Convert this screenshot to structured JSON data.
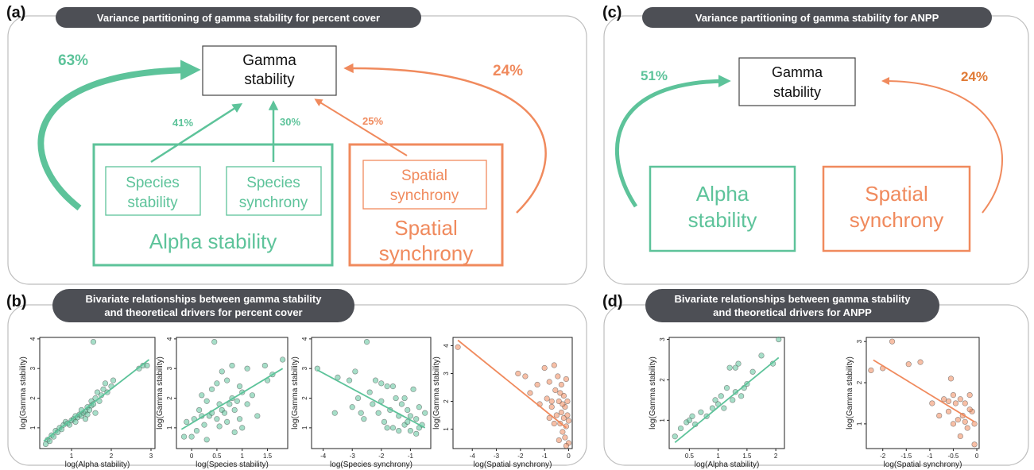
{
  "panels": {
    "a": {
      "tag": "(a)",
      "header": "Variance partitioning of gamma stability for percent cover",
      "gamma": [
        "Gamma",
        "stability"
      ],
      "alpha_label": "Alpha stability",
      "species_stability": [
        "Species",
        "stability"
      ],
      "species_synchrony": [
        "Species",
        "synchrony"
      ],
      "spatial_inner": [
        "Spatial",
        "synchrony"
      ],
      "spatial_outer": [
        "Spatial",
        "synchrony"
      ],
      "pct_alpha": "63%",
      "pct_spatial": "24%",
      "pct_species_stability": "41%",
      "pct_species_synchrony": "30%",
      "pct_spatial_inner": "25%"
    },
    "b": {
      "tag": "(b)",
      "header": [
        "Bivariate relationships between gamma stability",
        "and theoretical drivers for percent cover"
      ]
    },
    "c": {
      "tag": "(c)",
      "header": "Variance partitioning of gamma stability for ANPP",
      "gamma": [
        "Gamma",
        "stability"
      ],
      "alpha": [
        "Alpha",
        "stability"
      ],
      "spatial": [
        "Spatial",
        "synchrony"
      ],
      "pct_alpha": "51%",
      "pct_spatial": "24%"
    },
    "d": {
      "tag": "(d)",
      "header": [
        "Bivariate relationships between gamma stability",
        "and theoretical drivers for ANPP"
      ]
    }
  },
  "colors": {
    "green": "#5dc39a",
    "orange": "#f08a5d",
    "header_bg": "#4d4f55",
    "panel_border": "#bdbdbd"
  },
  "chart_data": [
    {
      "type": "scatter",
      "panel": "b",
      "color": "green",
      "xlabel": "log(Alpha stability)",
      "ylabel": "log(Gamma stability)",
      "xlim": [
        0.2,
        3.1
      ],
      "ylim": [
        0.3,
        4.05
      ],
      "xticks": [
        1,
        2,
        3
      ],
      "yticks": [
        1,
        2,
        3,
        4
      ],
      "fit": [
        [
          0.3,
          0.55
        ],
        [
          2.95,
          3.3
        ]
      ],
      "points": [
        [
          0.35,
          0.45
        ],
        [
          0.4,
          0.6
        ],
        [
          0.45,
          0.55
        ],
        [
          0.5,
          0.75
        ],
        [
          0.55,
          0.7
        ],
        [
          0.6,
          0.9
        ],
        [
          0.65,
          0.85
        ],
        [
          0.7,
          1.0
        ],
        [
          0.75,
          0.95
        ],
        [
          0.8,
          1.1
        ],
        [
          0.85,
          1.2
        ],
        [
          0.9,
          1.15
        ],
        [
          0.95,
          1.1
        ],
        [
          1.0,
          1.25
        ],
        [
          1.05,
          1.3
        ],
        [
          1.1,
          1.2
        ],
        [
          1.1,
          1.4
        ],
        [
          1.15,
          1.35
        ],
        [
          1.2,
          1.45
        ],
        [
          1.25,
          1.4
        ],
        [
          1.3,
          1.5
        ],
        [
          1.35,
          1.55
        ],
        [
          1.4,
          1.45
        ],
        [
          1.4,
          1.7
        ],
        [
          1.45,
          1.6
        ],
        [
          1.5,
          1.75
        ],
        [
          1.5,
          1.9
        ],
        [
          1.55,
          1.8
        ],
        [
          1.6,
          2.0
        ],
        [
          1.65,
          2.2
        ],
        [
          1.7,
          1.9
        ],
        [
          1.75,
          2.1
        ],
        [
          1.8,
          2.3
        ],
        [
          1.85,
          2.5
        ],
        [
          1.9,
          2.2
        ],
        [
          2.0,
          2.4
        ],
        [
          2.05,
          2.6
        ],
        [
          1.55,
          3.9
        ],
        [
          2.7,
          3.0
        ],
        [
          2.8,
          3.1
        ],
        [
          2.9,
          3.1
        ],
        [
          1.25,
          1.6
        ],
        [
          1.35,
          1.3
        ],
        [
          1.6,
          1.5
        ]
      ]
    },
    {
      "type": "scatter",
      "panel": "b",
      "color": "green",
      "xlabel": "log(Species stability)",
      "ylabel": "log(Gamma stability)",
      "xlim": [
        -0.3,
        1.9
      ],
      "ylim": [
        0.3,
        4.05
      ],
      "xticks": [
        0.0,
        0.5,
        1.0,
        1.5
      ],
      "yticks": [
        1,
        2,
        3,
        4
      ],
      "fit": [
        [
          -0.2,
          0.95
        ],
        [
          1.8,
          3.0
        ]
      ],
      "points": [
        [
          -0.15,
          0.7
        ],
        [
          -0.1,
          1.2
        ],
        [
          0.0,
          0.7
        ],
        [
          0.05,
          1.3
        ],
        [
          0.1,
          0.9
        ],
        [
          0.15,
          1.6
        ],
        [
          0.2,
          2.1
        ],
        [
          0.25,
          1.1
        ],
        [
          0.3,
          1.9
        ],
        [
          0.3,
          0.6
        ],
        [
          0.35,
          1.4
        ],
        [
          0.4,
          2.3
        ],
        [
          0.4,
          1.5
        ],
        [
          0.45,
          3.9
        ],
        [
          0.5,
          1.3
        ],
        [
          0.5,
          2.5
        ],
        [
          0.55,
          1.8
        ],
        [
          0.6,
          1.6
        ],
        [
          0.6,
          2.9
        ],
        [
          0.65,
          1.5
        ],
        [
          0.7,
          1.2
        ],
        [
          0.7,
          2.6
        ],
        [
          0.75,
          1.8
        ],
        [
          0.8,
          2.0
        ],
        [
          0.8,
          3.1
        ],
        [
          0.85,
          1.6
        ],
        [
          0.9,
          1.9
        ],
        [
          0.95,
          2.4
        ],
        [
          0.95,
          1.3
        ],
        [
          1.0,
          2.2
        ],
        [
          1.0,
          1.0
        ],
        [
          1.1,
          3.0
        ],
        [
          1.1,
          1.8
        ],
        [
          1.2,
          2.1
        ],
        [
          1.3,
          1.4
        ],
        [
          1.45,
          3.1
        ],
        [
          1.5,
          2.6
        ],
        [
          1.6,
          2.8
        ],
        [
          1.8,
          3.3
        ],
        [
          0.2,
          1.4
        ],
        [
          0.55,
          1.05
        ],
        [
          0.85,
          0.85
        ]
      ]
    },
    {
      "type": "scatter",
      "panel": "b",
      "color": "green",
      "xlabel": "log(Species synchrony)",
      "ylabel": "log(Gamma stability)",
      "xlim": [
        -4.4,
        -0.3
      ],
      "ylim": [
        0.3,
        4.05
      ],
      "xticks": [
        -4,
        -3,
        -2,
        -1
      ],
      "yticks": [
        1,
        2,
        3,
        4
      ],
      "fit": [
        [
          -4.2,
          2.95
        ],
        [
          -0.5,
          1.0
        ]
      ],
      "points": [
        [
          -4.2,
          3.0
        ],
        [
          -3.5,
          2.7
        ],
        [
          -3.1,
          2.6
        ],
        [
          -3.0,
          1.7
        ],
        [
          -2.9,
          2.9
        ],
        [
          -2.8,
          2.0
        ],
        [
          -2.6,
          1.3
        ],
        [
          -2.5,
          3.9
        ],
        [
          -2.4,
          2.2
        ],
        [
          -2.3,
          1.8
        ],
        [
          -2.2,
          2.6
        ],
        [
          -2.1,
          1.5
        ],
        [
          -2.0,
          1.9
        ],
        [
          -1.9,
          1.2
        ],
        [
          -1.8,
          2.4
        ],
        [
          -1.7,
          1.6
        ],
        [
          -1.6,
          1.0
        ],
        [
          -1.5,
          2.0
        ],
        [
          -1.4,
          1.4
        ],
        [
          -1.3,
          1.8
        ],
        [
          -1.2,
          1.1
        ],
        [
          -1.1,
          1.6
        ],
        [
          -1.0,
          0.9
        ],
        [
          -0.9,
          2.3
        ],
        [
          -0.8,
          1.3
        ],
        [
          -0.7,
          1.7
        ],
        [
          -0.6,
          1.1
        ],
        [
          -0.5,
          1.5
        ],
        [
          -1.6,
          2.4
        ],
        [
          -1.4,
          0.9
        ],
        [
          -1.2,
          2.0
        ],
        [
          -1.0,
          1.4
        ],
        [
          -0.8,
          0.8
        ],
        [
          -2.0,
          2.5
        ],
        [
          -1.8,
          1.0
        ],
        [
          -1.1,
          1.2
        ],
        [
          -0.7,
          1.0
        ],
        [
          -3.6,
          1.5
        ],
        [
          -2.7,
          1.5
        ]
      ]
    },
    {
      "type": "scatter",
      "panel": "b",
      "color": "orange",
      "xlabel": "log(Spatial synchrony)",
      "ylabel": "log(Gamma stability)",
      "xlim": [
        -4.8,
        0.15
      ],
      "ylim": [
        0.3,
        4.3
      ],
      "xticks": [
        -4,
        -3,
        -2,
        -1,
        0
      ],
      "yticks": [
        1,
        2,
        3,
        4
      ],
      "fit": [
        [
          -4.6,
          4.2
        ],
        [
          -0.1,
          1.05
        ]
      ],
      "points": [
        [
          -4.6,
          3.95
        ],
        [
          -2.1,
          3.0
        ],
        [
          -1.8,
          2.9
        ],
        [
          -1.6,
          2.3
        ],
        [
          -1.3,
          2.6
        ],
        [
          -1.2,
          1.9
        ],
        [
          -1.0,
          3.2
        ],
        [
          -0.9,
          2.1
        ],
        [
          -0.8,
          2.7
        ],
        [
          -0.7,
          1.8
        ],
        [
          -0.6,
          3.3
        ],
        [
          -0.55,
          2.4
        ],
        [
          -0.5,
          1.5
        ],
        [
          -0.45,
          2.9
        ],
        [
          -0.4,
          2.0
        ],
        [
          -0.35,
          1.2
        ],
        [
          -0.3,
          2.6
        ],
        [
          -0.3,
          1.6
        ],
        [
          -0.25,
          0.9
        ],
        [
          -0.2,
          2.2
        ],
        [
          -0.2,
          1.4
        ],
        [
          -0.15,
          1.8
        ],
        [
          -0.15,
          0.7
        ],
        [
          -0.1,
          2.8
        ],
        [
          -0.1,
          1.1
        ],
        [
          -0.05,
          1.5
        ],
        [
          -0.05,
          2.0
        ],
        [
          0.0,
          1.3
        ],
        [
          0.0,
          0.5
        ],
        [
          -0.6,
          1.2
        ],
        [
          -0.4,
          0.6
        ],
        [
          -0.8,
          1.4
        ],
        [
          -0.25,
          1.9
        ],
        [
          -0.1,
          0.4
        ],
        [
          -0.35,
          2.3
        ],
        [
          -0.7,
          2.0
        ]
      ]
    },
    {
      "type": "scatter",
      "panel": "d",
      "color": "green",
      "xlabel": "log(Alpha stability)",
      "ylabel": "log(Gamma stability)",
      "xlim": [
        0.15,
        2.15
      ],
      "ylim": [
        0.3,
        3.05
      ],
      "xticks": [
        0.5,
        1.0,
        1.5,
        2.0
      ],
      "yticks": [
        1,
        2,
        3
      ],
      "fit": [
        [
          0.25,
          0.45
        ],
        [
          2.05,
          2.55
        ]
      ],
      "points": [
        [
          0.25,
          0.6
        ],
        [
          0.35,
          0.8
        ],
        [
          0.45,
          0.95
        ],
        [
          0.55,
          1.1
        ],
        [
          0.6,
          0.9
        ],
        [
          0.7,
          1.2
        ],
        [
          0.8,
          1.1
        ],
        [
          0.9,
          1.3
        ],
        [
          0.95,
          1.5
        ],
        [
          1.0,
          1.4
        ],
        [
          1.05,
          1.6
        ],
        [
          1.1,
          1.3
        ],
        [
          1.15,
          1.8
        ],
        [
          1.2,
          2.3
        ],
        [
          1.25,
          1.5
        ],
        [
          1.3,
          1.7
        ],
        [
          1.35,
          2.4
        ],
        [
          1.4,
          1.6
        ],
        [
          1.45,
          1.8
        ],
        [
          1.5,
          1.9
        ],
        [
          1.6,
          2.2
        ],
        [
          1.75,
          2.6
        ],
        [
          1.95,
          2.4
        ],
        [
          2.05,
          3.0
        ],
        [
          1.3,
          2.3
        ],
        [
          0.5,
          1.0
        ]
      ]
    },
    {
      "type": "scatter",
      "panel": "d",
      "color": "orange",
      "xlabel": "log(Spatial synchrony)",
      "ylabel": "log(Gamma stability)",
      "xlim": [
        -2.35,
        0.05
      ],
      "ylim": [
        0.4,
        3.1
      ],
      "xticks": [
        -2.0,
        -1.5,
        -1.0,
        -0.5,
        0.0
      ],
      "yticks": [
        1,
        2,
        3
      ],
      "fit": [
        [
          -2.2,
          2.55
        ],
        [
          -0.05,
          1.05
        ]
      ],
      "points": [
        [
          -2.25,
          2.3
        ],
        [
          -2.0,
          2.35
        ],
        [
          -1.8,
          3.0
        ],
        [
          -1.45,
          2.45
        ],
        [
          -1.2,
          2.5
        ],
        [
          -0.95,
          1.5
        ],
        [
          -0.8,
          1.2
        ],
        [
          -0.7,
          1.6
        ],
        [
          -0.6,
          1.3
        ],
        [
          -0.55,
          2.1
        ],
        [
          -0.5,
          1.0
        ],
        [
          -0.45,
          1.5
        ],
        [
          -0.4,
          1.1
        ],
        [
          -0.35,
          1.6
        ],
        [
          -0.3,
          1.2
        ],
        [
          -0.25,
          1.5
        ],
        [
          -0.2,
          0.9
        ],
        [
          -0.15,
          1.7
        ],
        [
          -0.1,
          1.3
        ],
        [
          -0.05,
          1.0
        ],
        [
          -0.05,
          0.5
        ],
        [
          -0.6,
          1.55
        ],
        [
          -0.35,
          0.7
        ],
        [
          -0.15,
          1.35
        ],
        [
          -0.5,
          1.7
        ],
        [
          -0.25,
          1.05
        ]
      ]
    }
  ]
}
